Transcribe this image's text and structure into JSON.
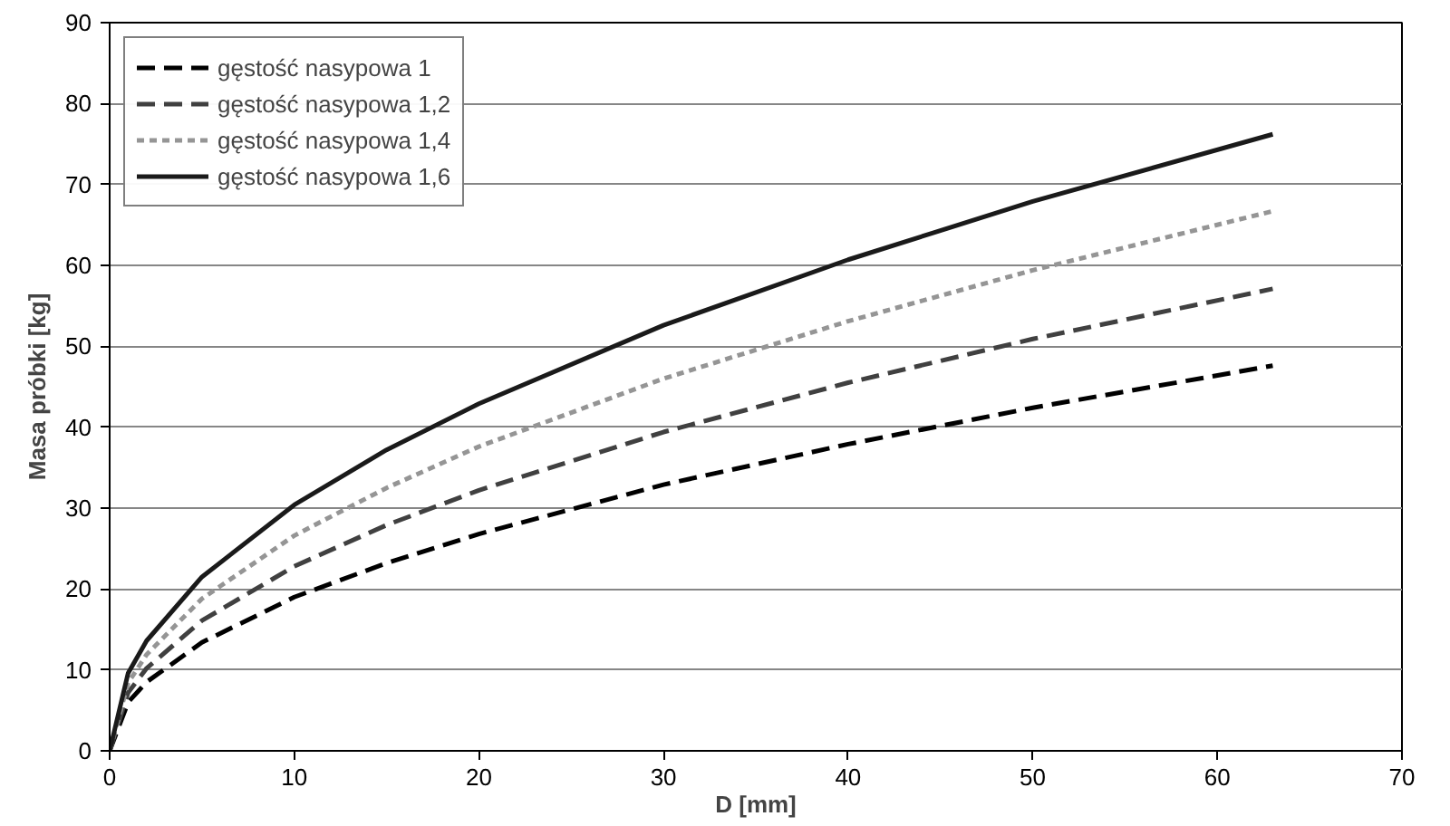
{
  "chart_data": {
    "type": "line",
    "xlabel": "D [mm]",
    "ylabel": "Masa próbki [kg]",
    "x": [
      0,
      1,
      2,
      5,
      10,
      15,
      20,
      30,
      40,
      50,
      63
    ],
    "series": [
      {
        "name": "gęstość nasypowa 1",
        "color": "#000000",
        "line_style": "dashed",
        "values": [
          0,
          6,
          8.5,
          13.4,
          19,
          23.2,
          26.8,
          32.9,
          37.9,
          42.4,
          47.6
        ]
      },
      {
        "name": "gęstość nasypowa 1,2",
        "color": "#404040",
        "line_style": "dashed",
        "values": [
          0,
          7.2,
          10.2,
          16.1,
          22.8,
          27.9,
          32.2,
          39.4,
          45.5,
          50.9,
          57.1
        ]
      },
      {
        "name": "gęstość nasypowa 1,4",
        "color": "#959595",
        "line_style": "dotted",
        "values": [
          0,
          8.4,
          11.9,
          18.8,
          26.6,
          32.5,
          37.6,
          46,
          53.1,
          59.4,
          66.7
        ]
      },
      {
        "name": "gęstość nasypowa 1,6",
        "color": "#1a1a1a",
        "line_style": "solid",
        "values": [
          0,
          9.6,
          13.6,
          21.5,
          30.4,
          37.2,
          42.9,
          52.6,
          60.7,
          67.9,
          76.2
        ]
      }
    ],
    "xlim": [
      0,
      70
    ],
    "ylim": [
      0,
      90
    ],
    "xticks": [
      0,
      10,
      20,
      30,
      40,
      50,
      60,
      70
    ],
    "yticks": [
      0,
      10,
      20,
      30,
      40,
      50,
      60,
      70,
      80,
      90
    ],
    "grid": "y",
    "legend": "top left",
    "marker": "none"
  }
}
